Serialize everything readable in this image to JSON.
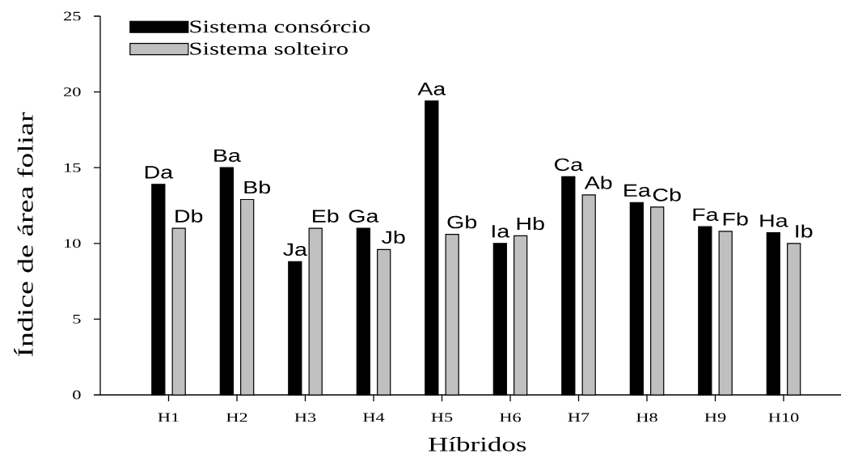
{
  "chart_data": {
    "type": "bar",
    "xlabel": "Híbridos",
    "ylabel": "Índice de área foliar",
    "categories": [
      "H1",
      "H2",
      "H3",
      "H4",
      "H5",
      "H6",
      "H7",
      "H8",
      "H9",
      "H10"
    ],
    "series": [
      {
        "name": "Sistema consórcio",
        "color": "#000000",
        "values": [
          13.9,
          15.0,
          8.8,
          11.0,
          19.4,
          10.0,
          14.4,
          12.7,
          11.1,
          10.7
        ],
        "value_labels": [
          "Da",
          "Ba",
          "Ja",
          "Ga",
          "Aa",
          "Ia",
          "Ca",
          "Ea",
          "Fa",
          "Ha"
        ]
      },
      {
        "name": "Sistema solteiro",
        "color": "#c0c0c0",
        "values": [
          11.0,
          12.9,
          11.0,
          9.6,
          10.6,
          10.5,
          13.2,
          12.4,
          10.8,
          10.0
        ],
        "value_labels": [
          "Db",
          "Bb",
          "Eb",
          "Jb",
          "Gb",
          "Hb",
          "Ab",
          "Cb",
          "Fb",
          "Ib"
        ]
      }
    ],
    "ylim": [
      0,
      25
    ],
    "yticks": [
      0,
      5,
      10,
      15,
      20,
      25
    ],
    "legend": "top left"
  }
}
